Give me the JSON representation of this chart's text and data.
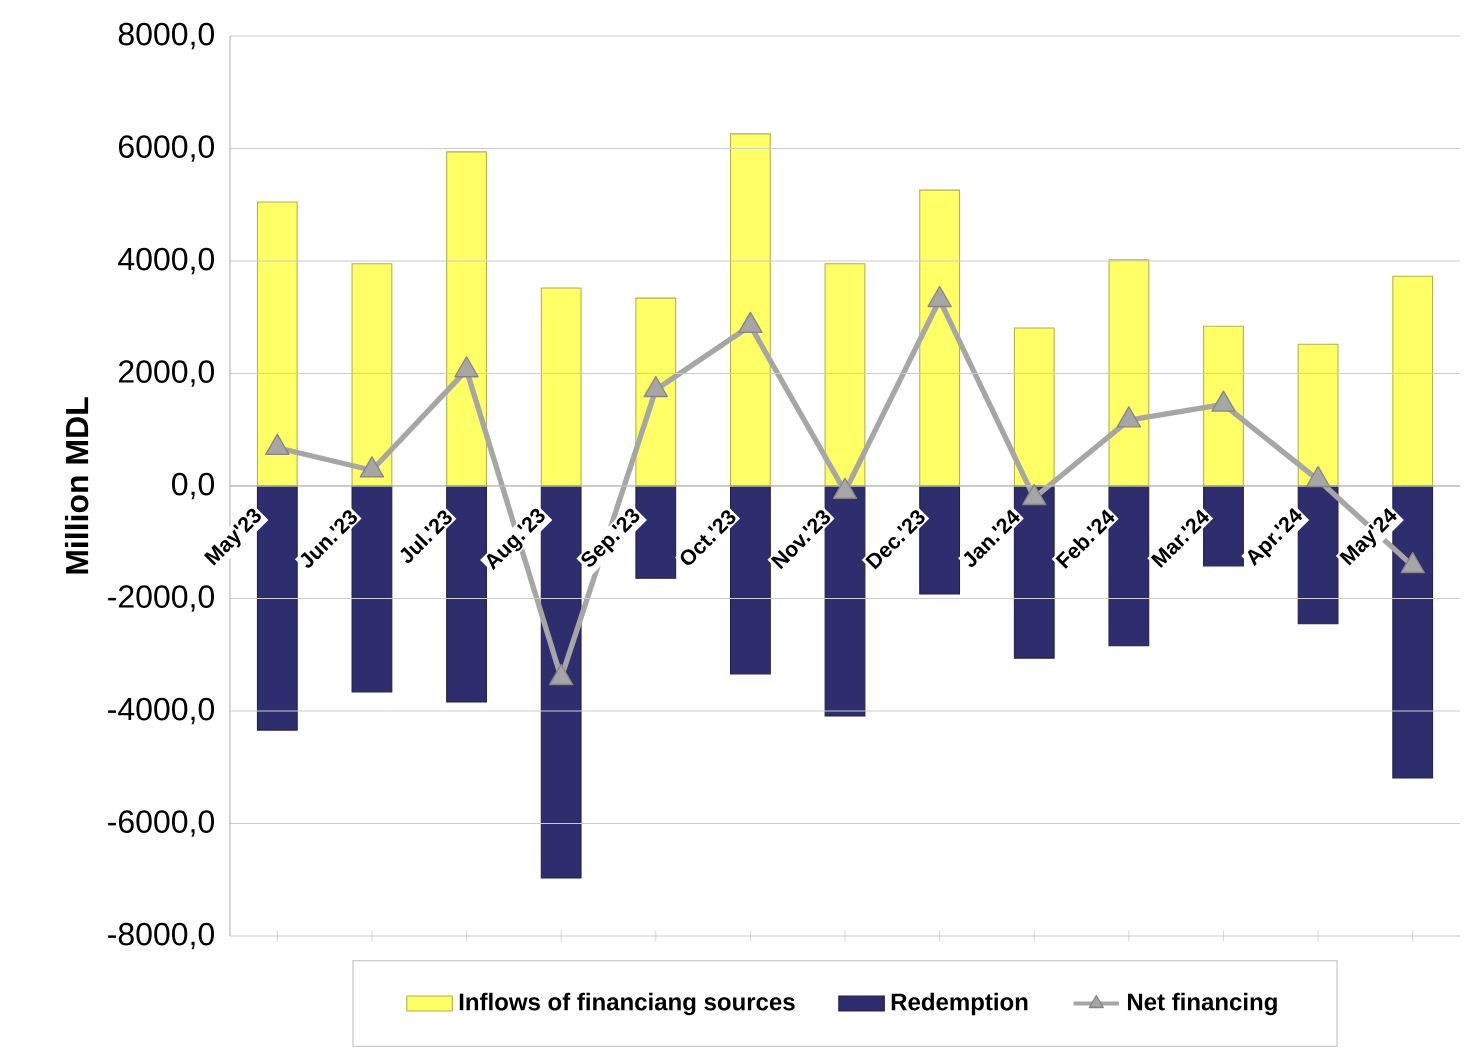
{
  "chart_data": {
    "type": "bar",
    "stacked": true,
    "ylabel": "Million MDL",
    "categories": [
      "May'23",
      "Jun.'23",
      "Jul.'23",
      "Aug.'23",
      "Sep.'23",
      "Oct.'23",
      "Nov.'23",
      "Dec.'23",
      "Jan.'24",
      "Feb.'24",
      "Mar.'24",
      "Apr.'24",
      "May'24"
    ],
    "series": [
      {
        "name": "Inflows of financiang sources",
        "color": "#ffff66",
        "values": [
          5050,
          3950,
          5940,
          3520,
          3340,
          6260,
          3950,
          5260,
          2810,
          4020,
          2840,
          2520,
          3730
        ]
      },
      {
        "name": "Redemption",
        "color": "#2e2e6e",
        "values": [
          -4340,
          -3660,
          -3840,
          -6970,
          -1640,
          -3340,
          -4090,
          -1920,
          -3060,
          -2840,
          -1420,
          -2450,
          -5190
        ]
      },
      {
        "name": "Net financing",
        "type": "line",
        "color": "#a6a6a6",
        "marker": "triangle",
        "values": [
          680,
          280,
          2060,
          -3410,
          1710,
          2850,
          -100,
          3310,
          -210,
          1170,
          1450,
          110,
          -1420
        ]
      }
    ],
    "ylim": [
      -8000,
      8000
    ],
    "yticks": [
      {
        "value": -8000,
        "label": "-8000,0"
      },
      {
        "value": -6000,
        "label": "-6000,0"
      },
      {
        "value": -4000,
        "label": "-4000,0"
      },
      {
        "value": -2000,
        "label": "-2000,0"
      },
      {
        "value": 0,
        "label": "0,0"
      },
      {
        "value": 2000,
        "label": "2000,0"
      },
      {
        "value": 4000,
        "label": "4000,0"
      },
      {
        "value": 6000,
        "label": "6000,0"
      },
      {
        "value": 8000,
        "label": "8000,0"
      }
    ],
    "grid": "y",
    "legend": "bottom"
  }
}
